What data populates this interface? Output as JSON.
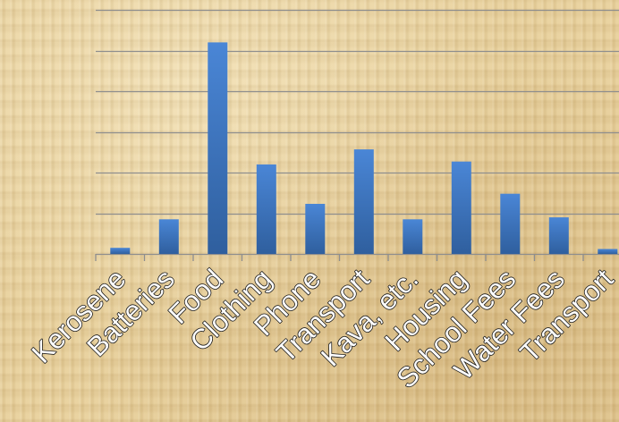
{
  "chart_data": {
    "type": "bar",
    "title": "",
    "xlabel": "",
    "ylabel": "",
    "categories": [
      "Kerosene",
      "Batteries",
      "Food",
      "Clothing",
      "Phone",
      "Transport",
      "Kava, etc.",
      "Housing",
      "School Fees",
      "Water Fees",
      "Transport"
    ],
    "values": [
      1.5,
      8.5,
      52,
      22,
      12.3,
      25.7,
      8.5,
      22.7,
      14.8,
      9,
      1.2
    ],
    "ylim": [
      0,
      60
    ],
    "y_gridline_step": 10,
    "grid": true,
    "legend": "none"
  },
  "colors": {
    "bar_top": "#4a86d6",
    "bar_bottom": "#2f5f9e",
    "gridline": "#8e8e8e",
    "axis": "#8e8e8e",
    "label_fill": "#ffffff",
    "label_outline": "#1a1a1a"
  }
}
